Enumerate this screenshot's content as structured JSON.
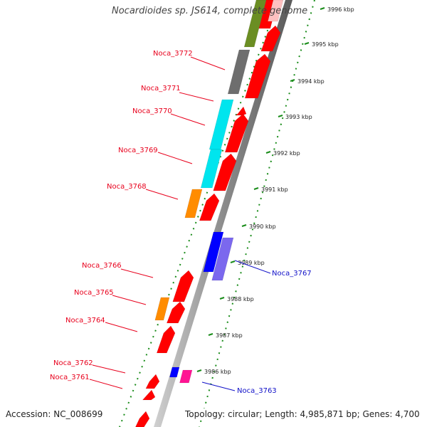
{
  "map": {
    "title": "Nocardioides sp. JS614, complete genome",
    "accession": "Accession: NC_008699",
    "topology": "Topology: circular; Length: 4,985,871 bp; Genes: 4,700"
  },
  "scale_ticks": [
    "3996 kbp",
    "3995 kbp",
    "3994 kbp",
    "3993 kbp",
    "3992 kbp",
    "3991 kbp",
    "3990 kbp",
    "3989 kbp",
    "3988 kbp",
    "3987 kbp",
    "3986 kbp"
  ],
  "gene_labels": [
    {
      "name": "Noca_3772",
      "strand": "reverse",
      "color": "#e8001c"
    },
    {
      "name": "Noca_3771",
      "strand": "reverse",
      "color": "#e8001c"
    },
    {
      "name": "Noca_3770",
      "strand": "reverse",
      "color": "#e8001c"
    },
    {
      "name": "Noca_3769",
      "strand": "reverse",
      "color": "#e8001c"
    },
    {
      "name": "Noca_3768",
      "strand": "reverse",
      "color": "#e8001c"
    },
    {
      "name": "Noca_3766",
      "strand": "reverse",
      "color": "#e8001c"
    },
    {
      "name": "Noca_3765",
      "strand": "reverse",
      "color": "#e8001c"
    },
    {
      "name": "Noca_3764",
      "strand": "reverse",
      "color": "#e8001c"
    },
    {
      "name": "Noca_3762",
      "strand": "reverse",
      "color": "#e8001c"
    },
    {
      "name": "Noca_3761",
      "strand": "reverse",
      "color": "#e8001c"
    },
    {
      "name": "Noca_3767",
      "strand": "forward",
      "color": "#1010c8"
    },
    {
      "name": "Noca_3763",
      "strand": "forward",
      "color": "#1010c8"
    }
  ],
  "colors": {
    "backbone": "#8c8c8c",
    "reverse_cds": "#ff0000",
    "forward_cds": "#0000ff",
    "cog_teal": "#00e5ee",
    "cog_orange": "#ff8c00",
    "cog_gray": "#6e6e6e",
    "cog_olive": "#6b8e23",
    "cog_lavender": "#7b68ee",
    "cog_magenta": "#ff1493",
    "tick": "#1a8c1a"
  }
}
